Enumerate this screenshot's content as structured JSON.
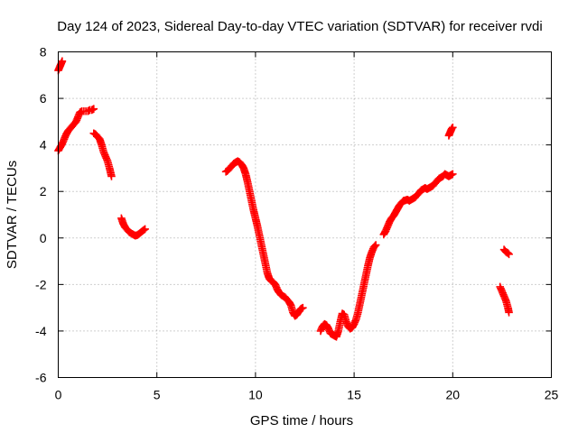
{
  "chart_data": {
    "type": "scatter",
    "title": "Day 124 of 2023, Sidereal Day-to-day VTEC variation (SDTVAR) for receiver rvdi",
    "xlabel": "GPS time / hours",
    "ylabel": "SDTVAR / TECUs",
    "xlim": [
      0,
      25
    ],
    "ylim": [
      -6,
      8
    ],
    "x_ticks": [
      "0",
      "5",
      "10",
      "15",
      "20",
      "25"
    ],
    "y_ticks": [
      "-6",
      "-4",
      "-2",
      "0",
      "2",
      "4",
      "6",
      "8"
    ],
    "grid": true,
    "marker": "+",
    "color": "#ff0000",
    "series": [
      {
        "name": "SDTVAR",
        "segments": [
          {
            "x": [
              0.0,
              0.05,
              0.1,
              0.15,
              0.2
            ],
            "y": [
              7.2,
              7.3,
              7.4,
              7.5,
              7.6
            ]
          },
          {
            "x": [
              0.0,
              0.1,
              0.2,
              0.3,
              0.4,
              0.5,
              0.6,
              0.7,
              0.8,
              0.9,
              1.0,
              1.1,
              1.2,
              1.3,
              1.4,
              1.5,
              1.6,
              1.7,
              1.8
            ],
            "y": [
              3.75,
              3.9,
              4.05,
              4.25,
              4.45,
              4.6,
              4.7,
              4.8,
              4.9,
              5.0,
              5.2,
              5.4,
              5.45,
              5.45,
              5.45,
              5.45,
              5.5,
              5.5,
              5.55
            ]
          },
          {
            "x": [
              1.8,
              1.9,
              2.0,
              2.1,
              2.2,
              2.3,
              2.4,
              2.5,
              2.6,
              2.7
            ],
            "y": [
              4.5,
              4.45,
              4.35,
              4.25,
              4.0,
              3.7,
              3.5,
              3.3,
              3.0,
              2.65
            ]
          },
          {
            "x": [
              3.2,
              3.3,
              3.4,
              3.5,
              3.6,
              3.7,
              3.8,
              3.9,
              4.0,
              4.1,
              4.2,
              4.3,
              4.4
            ],
            "y": [
              0.85,
              0.6,
              0.45,
              0.35,
              0.25,
              0.2,
              0.15,
              0.1,
              0.12,
              0.18,
              0.25,
              0.32,
              0.38
            ]
          },
          {
            "x": [
              8.5,
              8.6,
              8.7,
              8.8,
              8.9,
              9.0,
              9.1,
              9.2,
              9.3,
              9.4,
              9.5,
              9.6,
              9.7,
              9.8,
              9.9,
              10.0,
              10.1,
              10.2,
              10.3,
              10.4,
              10.5,
              10.6,
              10.7,
              10.8,
              10.9,
              11.0,
              11.1,
              11.2,
              11.3,
              11.4,
              11.5,
              11.6,
              11.7,
              11.8,
              11.9,
              12.0,
              12.1,
              12.2,
              12.3,
              12.4
            ],
            "y": [
              2.85,
              2.9,
              3.0,
              3.1,
              3.2,
              3.25,
              3.3,
              3.25,
              3.15,
              3.0,
              2.75,
              2.4,
              2.0,
              1.6,
              1.2,
              0.85,
              0.5,
              0.1,
              -0.3,
              -0.7,
              -1.1,
              -1.5,
              -1.75,
              -1.85,
              -1.9,
              -2.0,
              -2.2,
              -2.35,
              -2.45,
              -2.5,
              -2.55,
              -2.65,
              -2.75,
              -2.9,
              -3.2,
              -3.35,
              -3.3,
              -3.15,
              -3.05,
              -3.0
            ]
          },
          {
            "x": [
              13.3,
              13.4,
              13.5,
              13.6,
              13.7,
              13.8,
              13.9,
              14.0,
              14.1,
              14.2,
              14.3,
              14.4,
              14.5,
              14.6,
              14.7,
              14.8,
              14.9,
              15.0,
              15.1,
              15.2,
              15.3,
              15.4,
              15.5,
              15.6,
              15.7,
              15.8,
              15.9,
              16.0,
              16.1
            ],
            "y": [
              -4.0,
              -3.8,
              -3.7,
              -3.75,
              -3.9,
              -4.1,
              -4.15,
              -4.2,
              -4.25,
              -4.0,
              -3.6,
              -3.25,
              -3.3,
              -3.6,
              -3.8,
              -3.9,
              -3.85,
              -3.7,
              -3.5,
              -3.2,
              -2.8,
              -2.4,
              -2.0,
              -1.6,
              -1.2,
              -0.85,
              -0.6,
              -0.4,
              -0.3
            ]
          },
          {
            "x": [
              16.5,
              16.6,
              16.7,
              16.8,
              16.9,
              17.0,
              17.1,
              17.2,
              17.3,
              17.4,
              17.5,
              17.6,
              17.7,
              17.8,
              17.9,
              18.0,
              18.1,
              18.2,
              18.3,
              18.4,
              18.5,
              18.6,
              18.7,
              18.8,
              18.9,
              19.0,
              19.1,
              19.2,
              19.3,
              19.4,
              19.5,
              19.6,
              19.7,
              19.8,
              19.9,
              20.0
            ],
            "y": [
              0.15,
              0.3,
              0.5,
              0.7,
              0.85,
              0.95,
              1.1,
              1.25,
              1.4,
              1.5,
              1.6,
              1.62,
              1.65,
              1.6,
              1.65,
              1.7,
              1.75,
              1.85,
              1.95,
              2.05,
              2.1,
              2.15,
              2.1,
              2.15,
              2.2,
              2.25,
              2.35,
              2.45,
              2.55,
              2.6,
              2.65,
              2.75,
              2.7,
              2.65,
              2.7,
              2.75
            ]
          },
          {
            "x": [
              19.8,
              19.85,
              19.9,
              19.95,
              20.0
            ],
            "y": [
              4.4,
              4.5,
              4.6,
              4.7,
              4.75
            ]
          },
          {
            "x": [
              22.4,
              22.5,
              22.6,
              22.7,
              22.8,
              22.85
            ],
            "y": [
              -2.1,
              -2.3,
              -2.5,
              -2.7,
              -3.0,
              -3.2
            ]
          },
          {
            "x": [
              22.6,
              22.7,
              22.8,
              22.85
            ],
            "y": [
              -0.5,
              -0.6,
              -0.65,
              -0.7
            ]
          }
        ]
      }
    ]
  }
}
